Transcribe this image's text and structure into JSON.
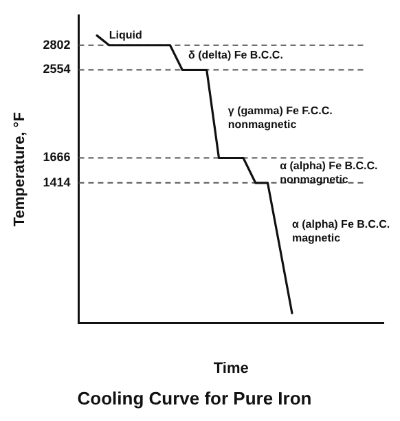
{
  "chart_data": {
    "type": "line",
    "title": "Cooling Curve for Pure Iron",
    "xlabel": "Time",
    "ylabel": "Temperature, °F",
    "categories": [
      null,
      null,
      null,
      null,
      null,
      null,
      null,
      null,
      null,
      null,
      null,
      null,
      null,
      null,
      null,
      null,
      null,
      null,
      null,
      null,
      null,
      null,
      null,
      null,
      null
    ],
    "series": [
      {
        "color": "#111111",
        "values": [
          null,
          2900,
          2802,
          2802,
          2802,
          2802,
          2802,
          2802,
          2554,
          2554,
          2554,
          1666,
          1666,
          1666,
          1414,
          1414,
          760,
          100,
          null,
          null,
          null,
          null,
          null,
          null,
          null
        ]
      }
    ],
    "ylim": [
      0,
      3100
    ],
    "yticks": [
      1414,
      1666,
      2554,
      2802
    ],
    "ref_lines": [
      {
        "axis": "y",
        "value": 2802,
        "color": "#555555",
        "line_style": "dashed"
      },
      {
        "axis": "y",
        "value": 2554,
        "color": "#555555",
        "line_style": "dashed"
      },
      {
        "axis": "y",
        "value": 1666,
        "color": "#555555",
        "line_style": "dashed"
      },
      {
        "axis": "y",
        "value": 1414,
        "color": "#555555",
        "line_style": "dashed"
      }
    ],
    "annotations": [
      "Liquid",
      "δ (delta) Fe B.C.C.",
      "γ (gamma) Fe F.C.C.\nnonmagnetic",
      "α (alpha) Fe B.C.C.\nnonmagnetic",
      "α (alpha) Fe B.C.C.\nmagnetic"
    ],
    "grid": false,
    "legend": false,
    "marker": "none",
    "line_style": "solid"
  }
}
